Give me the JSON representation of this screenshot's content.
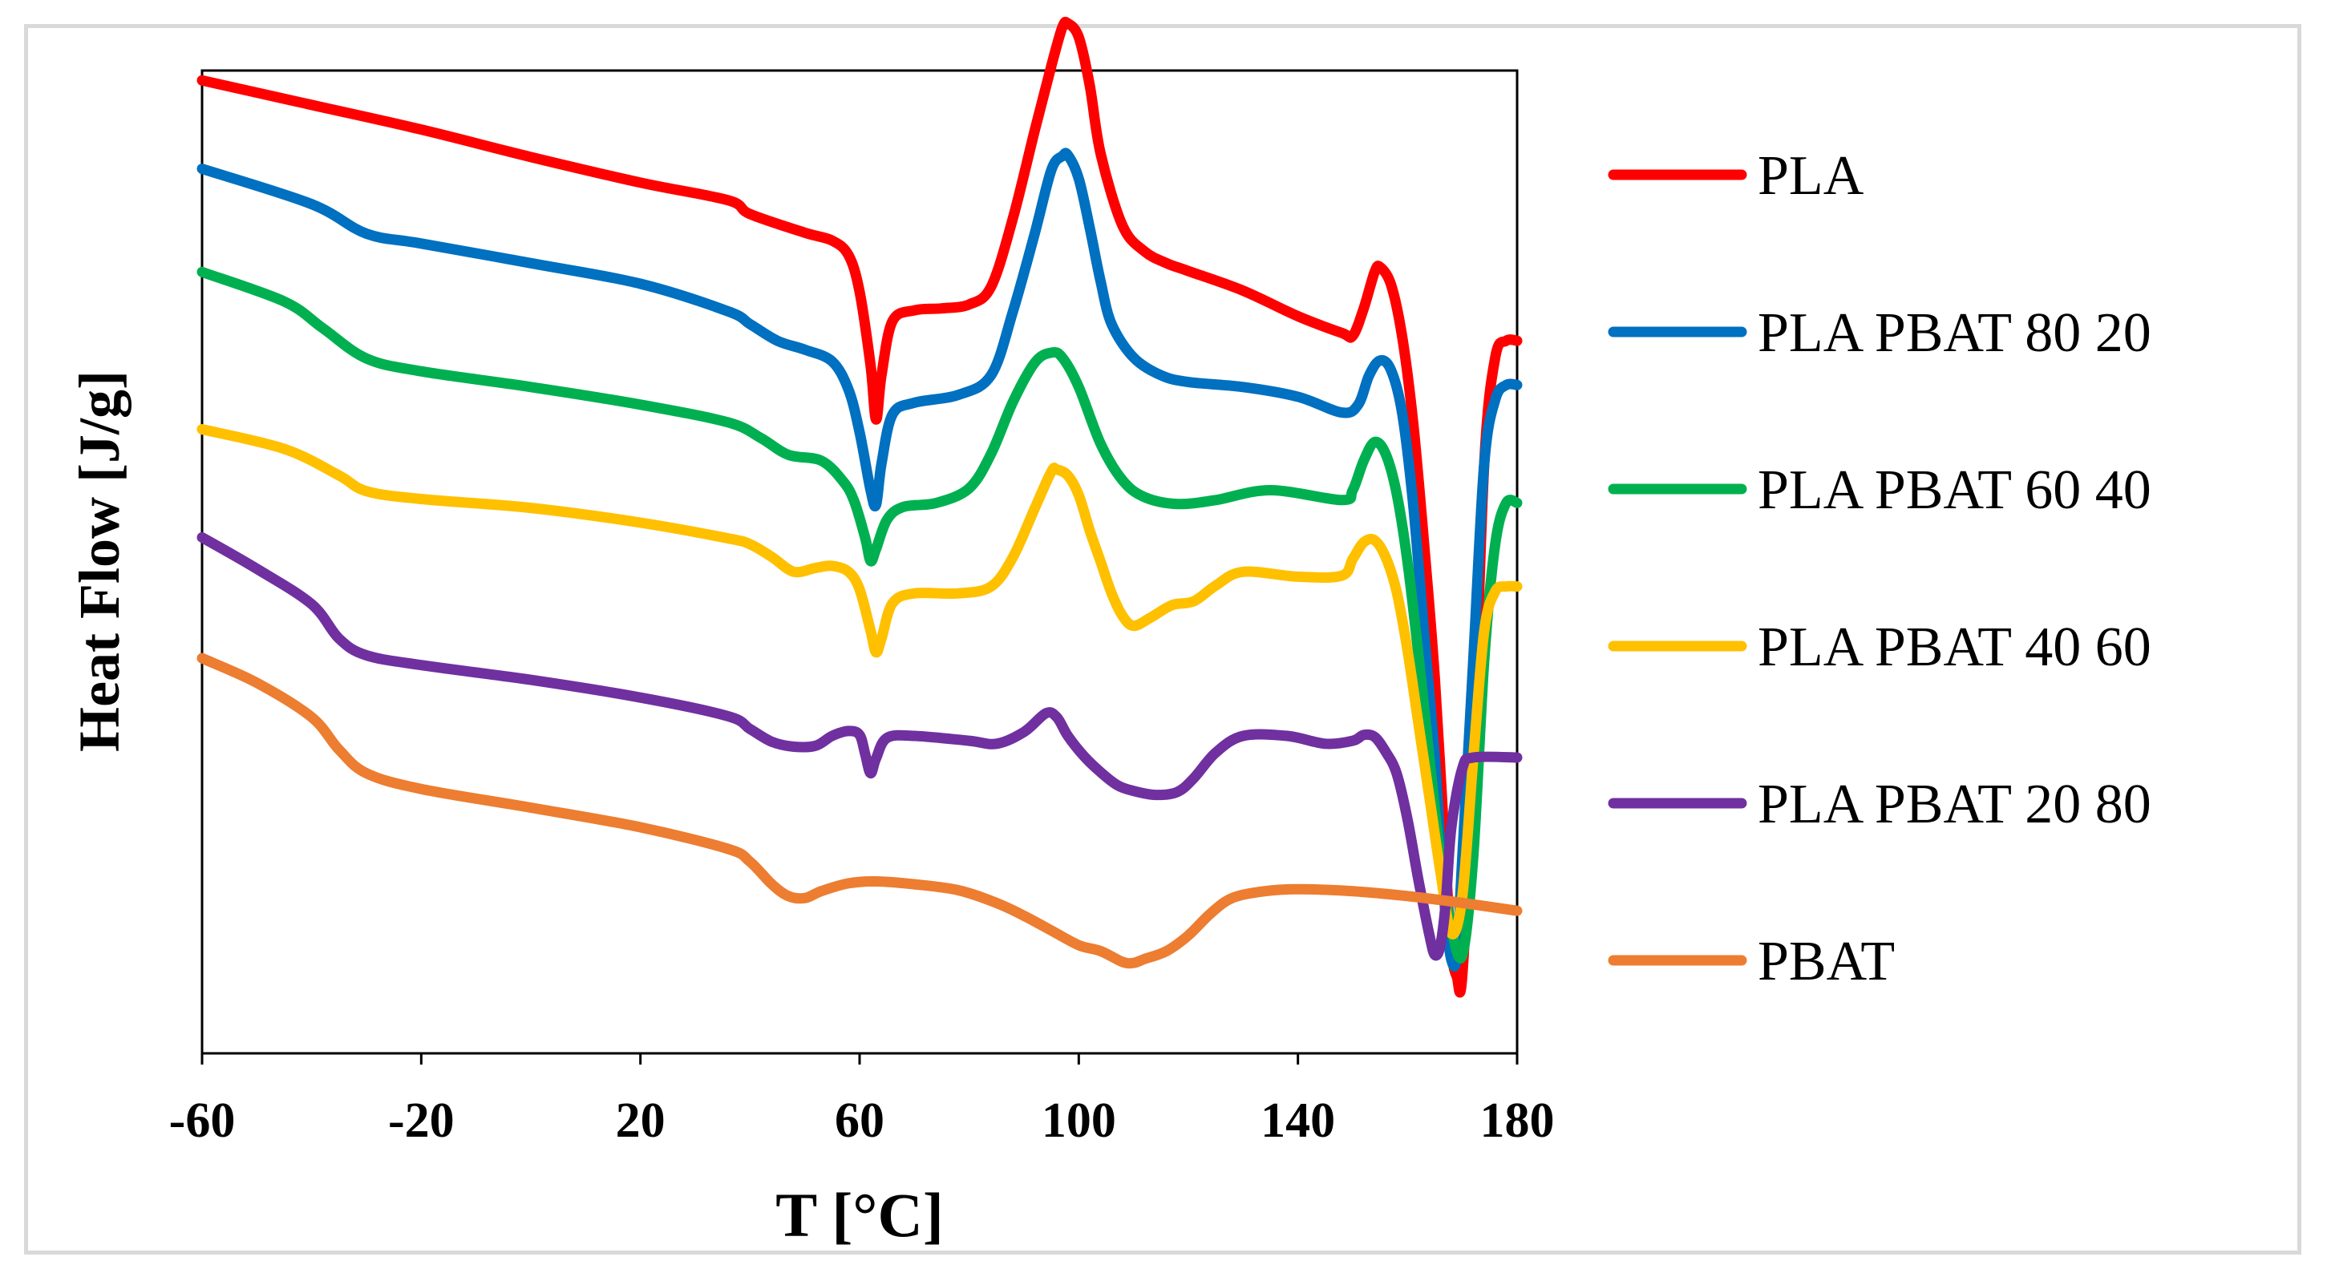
{
  "chart_data": {
    "type": "line",
    "title": "",
    "xlabel": "T [°C]",
    "ylabel": "Heat Flow [J/g]",
    "xlim": [
      -60,
      180
    ],
    "ylim": [
      0,
      100
    ],
    "xticks": [
      "-60",
      "-20",
      "20",
      "60",
      "100",
      "140",
      "180"
    ],
    "xtick_values": [
      -60,
      -20,
      20,
      60,
      100,
      140,
      180
    ],
    "grid": false,
    "legend_position": "right",
    "series": [
      {
        "name": "PLA",
        "color": "#ff0000",
        "points": [
          [
            -60,
            99
          ],
          [
            -40,
            96.5
          ],
          [
            -20,
            94
          ],
          [
            0,
            91.2
          ],
          [
            20,
            88.6
          ],
          [
            36,
            86.8
          ],
          [
            40,
            85.4
          ],
          [
            50,
            83.5
          ],
          [
            55,
            82.7
          ],
          [
            58,
            81.2
          ],
          [
            60,
            77.5
          ],
          [
            62,
            70
          ],
          [
            63,
            64.5
          ],
          [
            64,
            69
          ],
          [
            66,
            74.5
          ],
          [
            70,
            75.6
          ],
          [
            75,
            75.8
          ],
          [
            80,
            76.2
          ],
          [
            84,
            78
          ],
          [
            88,
            85
          ],
          [
            92,
            94
          ],
          [
            95,
            100.5
          ],
          [
            97,
            104.4
          ],
          [
            98,
            104.8
          ],
          [
            100,
            103.4
          ],
          [
            102,
            98.5
          ],
          [
            104,
            91.5
          ],
          [
            108,
            84.2
          ],
          [
            112,
            81.6
          ],
          [
            116,
            80.4
          ],
          [
            120,
            79.6
          ],
          [
            130,
            77.6
          ],
          [
            140,
            75
          ],
          [
            148,
            73.3
          ],
          [
            150,
            73
          ],
          [
            152,
            75.8
          ],
          [
            154,
            79.5
          ],
          [
            155,
            80
          ],
          [
            157,
            78.2
          ],
          [
            159,
            73
          ],
          [
            161,
            64.3
          ],
          [
            163,
            52
          ],
          [
            165,
            38
          ],
          [
            167,
            19
          ],
          [
            168,
            10.5
          ],
          [
            169,
            7.8
          ],
          [
            170,
            8
          ],
          [
            172,
            30
          ],
          [
            174,
            60
          ],
          [
            176,
            70.8
          ],
          [
            178,
            72.5
          ],
          [
            180,
            72.5
          ]
        ]
      },
      {
        "name": "PLA PBAT 80 20",
        "color": "#0070c0",
        "points": [
          [
            -60,
            90
          ],
          [
            -40,
            86.4
          ],
          [
            -30,
            83.4
          ],
          [
            -20,
            82.4
          ],
          [
            0,
            80.4
          ],
          [
            20,
            78.3
          ],
          [
            36,
            75.5
          ],
          [
            40,
            74.2
          ],
          [
            45,
            72.5
          ],
          [
            50,
            71.6
          ],
          [
            55,
            70.4
          ],
          [
            58,
            67.5
          ],
          [
            60,
            63.2
          ],
          [
            62,
            57.3
          ],
          [
            63,
            55.8
          ],
          [
            64,
            60
          ],
          [
            66,
            65
          ],
          [
            70,
            66.2
          ],
          [
            78,
            67
          ],
          [
            84,
            69
          ],
          [
            88,
            75.5
          ],
          [
            92,
            83.5
          ],
          [
            95,
            89.9
          ],
          [
            97,
            91.3
          ],
          [
            98,
            91.4
          ],
          [
            100,
            89
          ],
          [
            102,
            84
          ],
          [
            104,
            78.5
          ],
          [
            106,
            74.2
          ],
          [
            110,
            70.8
          ],
          [
            115,
            69
          ],
          [
            120,
            68.3
          ],
          [
            130,
            67.8
          ],
          [
            140,
            66.8
          ],
          [
            148,
            65.2
          ],
          [
            151,
            66
          ],
          [
            153,
            69
          ],
          [
            155,
            70.5
          ],
          [
            157,
            69.5
          ],
          [
            159,
            65.2
          ],
          [
            161,
            56
          ],
          [
            163,
            43
          ],
          [
            165,
            30
          ],
          [
            166,
            21
          ],
          [
            167,
            13.8
          ],
          [
            168,
            9.5
          ],
          [
            169,
            10
          ],
          [
            170,
            20
          ],
          [
            172,
            40
          ],
          [
            174,
            60
          ],
          [
            176,
            66.5
          ],
          [
            178,
            68
          ],
          [
            180,
            68
          ]
        ]
      },
      {
        "name": "PLA PBAT 60 40",
        "color": "#00b050",
        "points": [
          [
            -60,
            79.5
          ],
          [
            -45,
            76.5
          ],
          [
            -38,
            73.8
          ],
          [
            -30,
            70.7
          ],
          [
            -20,
            69.4
          ],
          [
            0,
            67.8
          ],
          [
            20,
            66
          ],
          [
            36,
            64.2
          ],
          [
            42,
            62.6
          ],
          [
            47,
            60.9
          ],
          [
            53,
            60.3
          ],
          [
            57,
            58.2
          ],
          [
            59,
            56.2
          ],
          [
            61,
            52.5
          ],
          [
            62,
            50.1
          ],
          [
            63,
            51.3
          ],
          [
            65,
            54.3
          ],
          [
            68,
            55.6
          ],
          [
            74,
            56
          ],
          [
            80,
            57.5
          ],
          [
            84,
            61
          ],
          [
            88,
            66.3
          ],
          [
            92,
            70.3
          ],
          [
            95,
            71.3
          ],
          [
            97,
            70.8
          ],
          [
            100,
            67.8
          ],
          [
            104,
            62
          ],
          [
            108,
            58.3
          ],
          [
            112,
            56.6
          ],
          [
            118,
            55.9
          ],
          [
            125,
            56.3
          ],
          [
            135,
            57.3
          ],
          [
            148,
            56.3
          ],
          [
            150,
            57.3
          ],
          [
            152,
            60.3
          ],
          [
            154,
            62.2
          ],
          [
            156,
            61
          ],
          [
            158,
            57
          ],
          [
            160,
            50
          ],
          [
            162,
            40.5
          ],
          [
            164,
            30
          ],
          [
            166,
            20
          ],
          [
            168,
            12.8
          ],
          [
            170,
            10
          ],
          [
            172,
            20
          ],
          [
            174,
            40
          ],
          [
            176,
            51.8
          ],
          [
            178,
            56
          ],
          [
            180,
            56
          ]
        ]
      },
      {
        "name": "PLA PBAT 40 60",
        "color": "#ffc000",
        "points": [
          [
            -60,
            63.5
          ],
          [
            -45,
            61.5
          ],
          [
            -35,
            58.8
          ],
          [
            -30,
            57.2
          ],
          [
            -20,
            56.4
          ],
          [
            0,
            55.5
          ],
          [
            20,
            54
          ],
          [
            36,
            52.4
          ],
          [
            40,
            51.8
          ],
          [
            44,
            50.5
          ],
          [
            48,
            49
          ],
          [
            52,
            49.4
          ],
          [
            55,
            49.6
          ],
          [
            58,
            49
          ],
          [
            60,
            47.2
          ],
          [
            62,
            43
          ],
          [
            63,
            40.8
          ],
          [
            64,
            42.2
          ],
          [
            66,
            45.8
          ],
          [
            70,
            46.8
          ],
          [
            78,
            46.8
          ],
          [
            84,
            47.5
          ],
          [
            88,
            50.5
          ],
          [
            92,
            55.5
          ],
          [
            95,
            59.2
          ],
          [
            96,
            59.4
          ],
          [
            98,
            58.8
          ],
          [
            100,
            56.8
          ],
          [
            102,
            53.2
          ],
          [
            104,
            50
          ],
          [
            106,
            46.8
          ],
          [
            108,
            44.5
          ],
          [
            110,
            43.5
          ],
          [
            113,
            44.3
          ],
          [
            117,
            45.6
          ],
          [
            121,
            46
          ],
          [
            125,
            47.6
          ],
          [
            130,
            49
          ],
          [
            140,
            48.5
          ],
          [
            148,
            48.6
          ],
          [
            150,
            50.3
          ],
          [
            152,
            52
          ],
          [
            154,
            52.2
          ],
          [
            156,
            50.5
          ],
          [
            158,
            47
          ],
          [
            160,
            41
          ],
          [
            162,
            33.5
          ],
          [
            164,
            26
          ],
          [
            166,
            18.5
          ],
          [
            168,
            12.2
          ],
          [
            170,
            16
          ],
          [
            172,
            30
          ],
          [
            174,
            43
          ],
          [
            176,
            47
          ],
          [
            178,
            47.5
          ],
          [
            180,
            47.5
          ]
        ]
      },
      {
        "name": "PLA PBAT 20 80",
        "color": "#7030a0",
        "points": [
          [
            -60,
            52.5
          ],
          [
            -50,
            49.3
          ],
          [
            -40,
            45.7
          ],
          [
            -35,
            42.2
          ],
          [
            -30,
            40.5
          ],
          [
            -20,
            39.5
          ],
          [
            0,
            38
          ],
          [
            20,
            36.2
          ],
          [
            36,
            34.3
          ],
          [
            40,
            33
          ],
          [
            44,
            31.7
          ],
          [
            48,
            31.2
          ],
          [
            52,
            31.3
          ],
          [
            55,
            32.3
          ],
          [
            58,
            32.8
          ],
          [
            60,
            32.4
          ],
          [
            61,
            30.5
          ],
          [
            62,
            28.5
          ],
          [
            63,
            30
          ],
          [
            65,
            32.1
          ],
          [
            70,
            32.3
          ],
          [
            80,
            31.8
          ],
          [
            85,
            31.5
          ],
          [
            90,
            32.7
          ],
          [
            94,
            34.6
          ],
          [
            96,
            34.2
          ],
          [
            98,
            32.3
          ],
          [
            101,
            30.2
          ],
          [
            104,
            28.6
          ],
          [
            107,
            27.3
          ],
          [
            110,
            26.7
          ],
          [
            114,
            26.3
          ],
          [
            118,
            26.6
          ],
          [
            121,
            28
          ],
          [
            125,
            30.6
          ],
          [
            130,
            32.3
          ],
          [
            138,
            32.3
          ],
          [
            145,
            31.5
          ],
          [
            150,
            31.8
          ],
          [
            152,
            32.4
          ],
          [
            154,
            32.2
          ],
          [
            156,
            30.7
          ],
          [
            158,
            28.5
          ],
          [
            160,
            23.8
          ],
          [
            162,
            17.6
          ],
          [
            164,
            12
          ],
          [
            165,
            10
          ],
          [
            166,
            11
          ],
          [
            167,
            15.5
          ],
          [
            168,
            23
          ],
          [
            170,
            29
          ],
          [
            172,
            30.1
          ],
          [
            180,
            30.1
          ]
        ]
      },
      {
        "name": "PBAT",
        "color": "#ed7d31",
        "points": [
          [
            -60,
            40.2
          ],
          [
            -50,
            37.7
          ],
          [
            -40,
            34.2
          ],
          [
            -35,
            30.9
          ],
          [
            -30,
            28.5
          ],
          [
            -20,
            26.9
          ],
          [
            0,
            25
          ],
          [
            20,
            23
          ],
          [
            36,
            20.8
          ],
          [
            40,
            19.5
          ],
          [
            44,
            17.2
          ],
          [
            47,
            16
          ],
          [
            50,
            15.8
          ],
          [
            53,
            16.5
          ],
          [
            58,
            17.3
          ],
          [
            63,
            17.5
          ],
          [
            70,
            17.2
          ],
          [
            78,
            16.6
          ],
          [
            85,
            15.3
          ],
          [
            90,
            14
          ],
          [
            95,
            12.5
          ],
          [
            100,
            11
          ],
          [
            104,
            10.4
          ],
          [
            108,
            9.3
          ],
          [
            110,
            9.2
          ],
          [
            112,
            9.6
          ],
          [
            116,
            10.4
          ],
          [
            120,
            12
          ],
          [
            124,
            14.2
          ],
          [
            128,
            15.8
          ],
          [
            134,
            16.5
          ],
          [
            140,
            16.7
          ],
          [
            150,
            16.5
          ],
          [
            160,
            16
          ],
          [
            170,
            15.3
          ],
          [
            180,
            14.5
          ]
        ]
      }
    ]
  }
}
